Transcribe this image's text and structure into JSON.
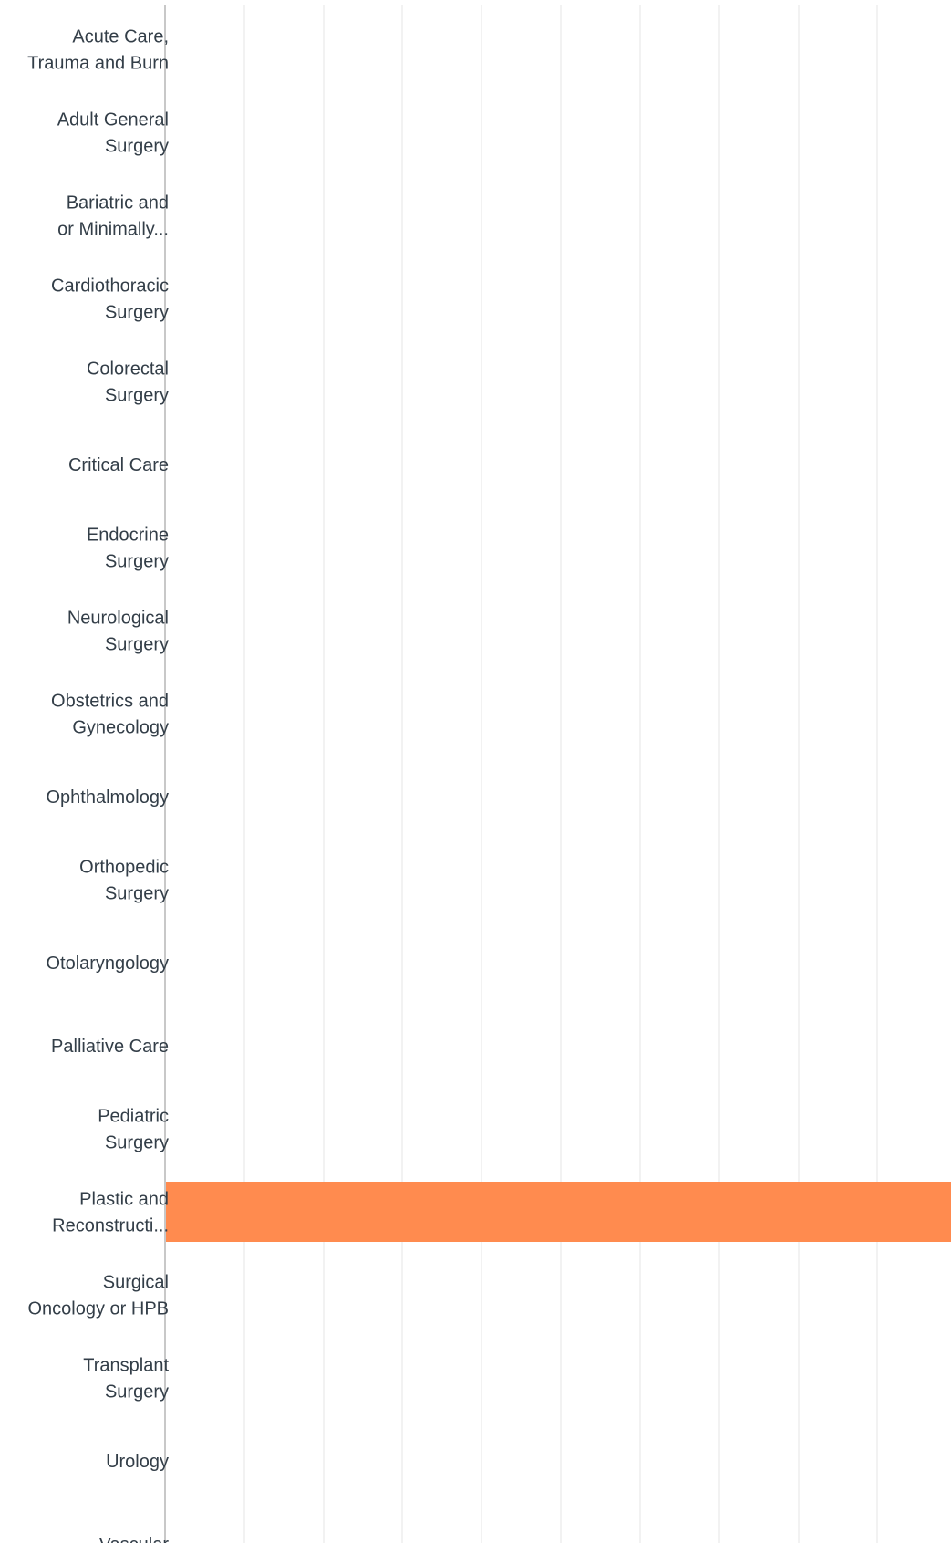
{
  "chart_data": {
    "type": "bar",
    "orientation": "horizontal",
    "categories": [
      [
        "Acute Care,",
        "Trauma and Burn"
      ],
      [
        "Adult General",
        "Surgery"
      ],
      [
        "Bariatric and",
        "or Minimally..."
      ],
      [
        "Cardiothoracic",
        "Surgery"
      ],
      [
        "Colorectal",
        "Surgery"
      ],
      [
        "Critical Care"
      ],
      [
        "Endocrine",
        "Surgery"
      ],
      [
        "Neurological",
        "Surgery"
      ],
      [
        "Obstetrics and",
        "Gynecology"
      ],
      [
        "Ophthalmology"
      ],
      [
        "Orthopedic",
        "Surgery"
      ],
      [
        "Otolaryngology"
      ],
      [
        "Palliative Care"
      ],
      [
        "Pediatric",
        "Surgery"
      ],
      [
        "Plastic and",
        "Reconstructi..."
      ],
      [
        "Surgical",
        "Oncology or HPB"
      ],
      [
        "Transplant",
        "Surgery"
      ],
      [
        "Urology"
      ],
      [
        "Vascular"
      ]
    ],
    "values": [
      0,
      0,
      0,
      0,
      0,
      0,
      0,
      0,
      0,
      0,
      0,
      0,
      0,
      0,
      100,
      0,
      0,
      0,
      0
    ],
    "xlim": [
      0,
      100
    ],
    "grid": true,
    "colors": {
      "bar": "#FF8B4F",
      "grid": "#E6E6E6",
      "axis": "#C8C8C8",
      "label": "#333E48"
    }
  }
}
